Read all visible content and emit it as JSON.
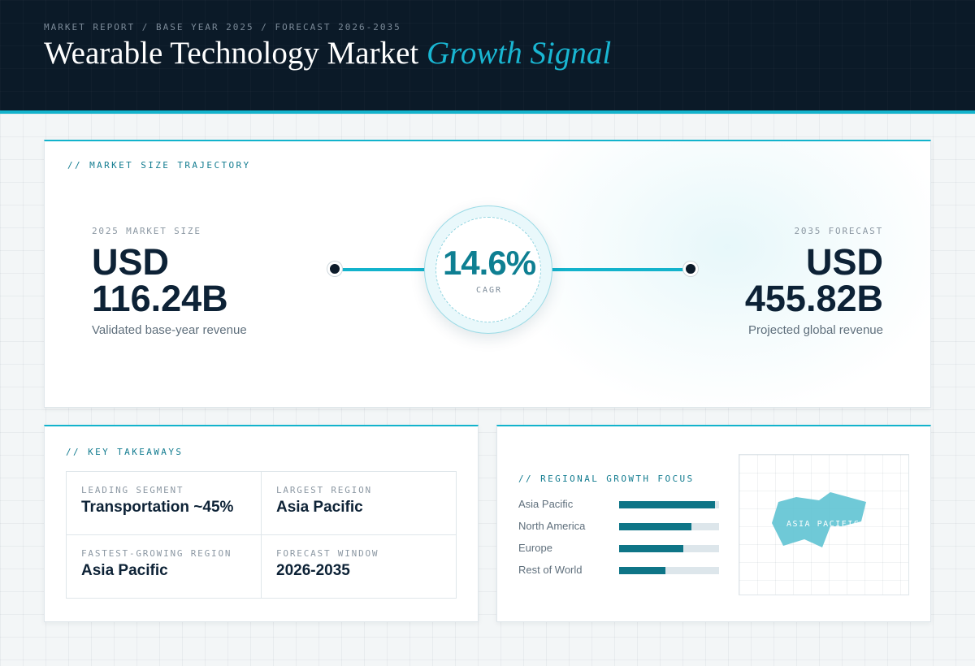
{
  "header": {
    "breadcrumb": "MARKET REPORT / BASE YEAR 2025 / FORECAST 2026-2035",
    "title_main": "Wearable Technology Market",
    "title_accent": "Growth Signal"
  },
  "trajectory": {
    "section_label": "// MARKET SIZE TRAJECTORY",
    "start": {
      "label": "2025 MARKET SIZE",
      "value_line1": "USD",
      "value_line2": "116.24B",
      "sub": "Validated base-year revenue"
    },
    "end": {
      "label": "2035 FORECAST",
      "value_line1": "USD",
      "value_line2": "455.82B",
      "sub": "Projected global revenue"
    },
    "cagr": {
      "value": "14.6%",
      "label": "CAGR"
    }
  },
  "takeaways": {
    "section_label": "// KEY TAKEAWAYS",
    "items": [
      {
        "label": "LEADING SEGMENT",
        "value": "Transportation ~45%"
      },
      {
        "label": "LARGEST REGION",
        "value": "Asia Pacific"
      },
      {
        "label": "FASTEST-GROWING REGION",
        "value": "Asia Pacific"
      },
      {
        "label": "FORECAST WINDOW",
        "value": "2026-2035"
      }
    ]
  },
  "regional": {
    "section_label": "// REGIONAL GROWTH FOCUS",
    "bars": [
      {
        "name": "Asia Pacific",
        "level": 0.96
      },
      {
        "name": "North America",
        "level": 0.72
      },
      {
        "name": "Europe",
        "level": 0.64
      },
      {
        "name": "Rest of World",
        "level": 0.46
      }
    ],
    "map_label": "ASIA PACIFIC"
  },
  "colors": {
    "accent": "#13b3cc",
    "accent_dark": "#0e7587",
    "navy": "#0b1a28",
    "map_fill": "#5fc3d3"
  }
}
